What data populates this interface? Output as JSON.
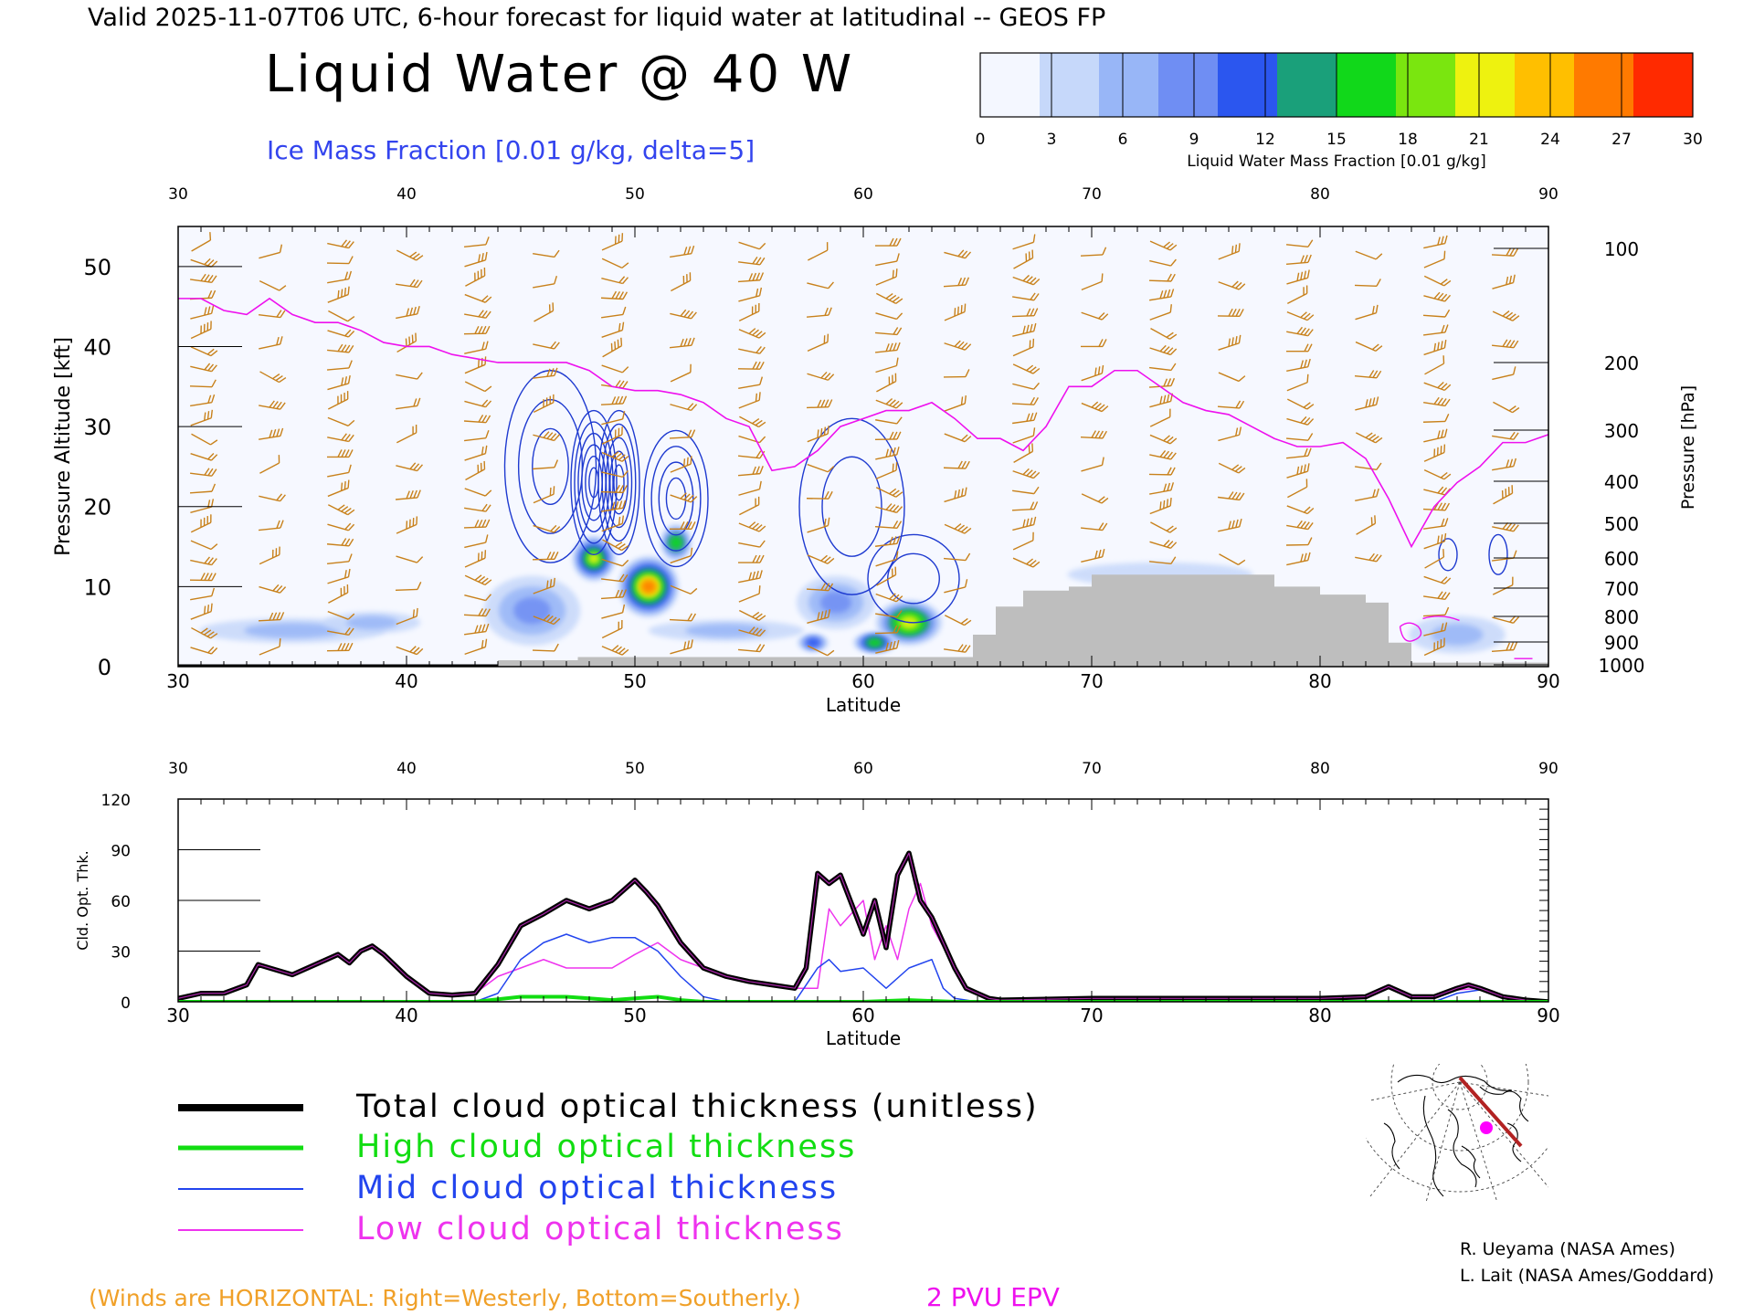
{
  "header": {
    "valid_line": "Valid 2025-11-07T06 UTC, 6-hour forecast for liquid water at latitudinal -- GEOS FP",
    "big_title": "Liquid Water @ 40 W",
    "ice_label": "Ice Mass Fraction [0.01 g/kg, delta=5]"
  },
  "colorbar": {
    "ticks": [
      "0",
      "3",
      "6",
      "9",
      "12",
      "15",
      "18",
      "21",
      "24",
      "27",
      "30"
    ],
    "label": "Liquid Water Mass Fraction [0.01 g/kg]",
    "colors": [
      "#f4f7ff",
      "#c6d8fa",
      "#98b6f7",
      "#6f8ef3",
      "#2b56ef",
      "#1aa07a",
      "#11d81a",
      "#7ae60f",
      "#eef20f",
      "#ffbf00",
      "#ff7a00",
      "#ff2a00"
    ]
  },
  "colors": {
    "wind_barb": "#c8811b",
    "epv": "#ee11ee",
    "ice_contour": "#1e3ad0",
    "terrain": "#bebebe",
    "total": "#000000",
    "high": "#12dd12",
    "mid": "#2244ee",
    "low": "#ee33ee"
  },
  "chart_data": [
    {
      "type": "heatmap",
      "name": "liquid_water_cross_section",
      "x_top_ticks": [
        "30",
        "40",
        "50",
        "60",
        "70",
        "80",
        "90"
      ],
      "x_bottom_ticks": [
        "30",
        "40",
        "50",
        "60",
        "70",
        "80",
        "90"
      ],
      "xlabel": "Latitude",
      "ylabel_left": "Pressure Altitude [kft]",
      "left_ticks": [
        "0",
        "10",
        "20",
        "30",
        "40",
        "50"
      ],
      "ylabel_right": "Pressure [hPa]",
      "right_ticks": [
        "100",
        "200",
        "300",
        "400",
        "500",
        "600",
        "700",
        "800",
        "900",
        "1000"
      ],
      "xlim": [
        30,
        90
      ],
      "ylim": [
        0,
        55
      ],
      "liquid_water_blobs": [
        {
          "lat": 48.2,
          "alt": 13.5,
          "value": 20,
          "w": 0.6,
          "h": 2.5
        },
        {
          "lat": 50.6,
          "alt": 10.0,
          "value": 26,
          "w": 0.9,
          "h": 3.5
        },
        {
          "lat": 51.8,
          "alt": 15.5,
          "value": 16,
          "w": 0.4,
          "h": 2.0
        },
        {
          "lat": 62.0,
          "alt": 5.5,
          "value": 22,
          "w": 1.0,
          "h": 2.5
        },
        {
          "lat": 60.5,
          "alt": 3.0,
          "value": 17,
          "w": 0.6,
          "h": 1.0
        },
        {
          "lat": 57.8,
          "alt": 3.0,
          "value": 12,
          "w": 0.4,
          "h": 0.8
        },
        {
          "lat": 45.5,
          "alt": 7.0,
          "value": 8,
          "w": 1.5,
          "h": 4.0
        },
        {
          "lat": 58.8,
          "alt": 8.0,
          "value": 8,
          "w": 1.2,
          "h": 3.0
        },
        {
          "lat": 35.0,
          "alt": 4.5,
          "value": 7,
          "w": 3.0,
          "h": 1.2
        },
        {
          "lat": 38.5,
          "alt": 5.5,
          "value": 6,
          "w": 1.5,
          "h": 1.0
        },
        {
          "lat": 54.0,
          "alt": 4.5,
          "value": 5,
          "w": 2.5,
          "h": 1.0
        },
        {
          "lat": 86.0,
          "alt": 4.0,
          "value": 5,
          "w": 1.5,
          "h": 2.0
        },
        {
          "lat": 73.0,
          "alt": 11.5,
          "value": 4,
          "w": 3.0,
          "h": 1.2
        }
      ],
      "ice_contours": [
        {
          "lat": 46.3,
          "alt": 25.0,
          "rx": 2.0,
          "ry": 12.0,
          "levels": 3
        },
        {
          "lat": 48.2,
          "alt": 23.0,
          "rx": 1.0,
          "ry": 9.0,
          "levels": 6
        },
        {
          "lat": 49.3,
          "alt": 23.0,
          "rx": 0.9,
          "ry": 9.0,
          "levels": 5
        },
        {
          "lat": 51.8,
          "alt": 21.0,
          "rx": 1.4,
          "ry": 8.5,
          "levels": 4
        },
        {
          "lat": 59.5,
          "alt": 20.0,
          "rx": 2.3,
          "ry": 11.0,
          "levels": 2
        },
        {
          "lat": 62.2,
          "alt": 11.0,
          "rx": 2.0,
          "ry": 5.5,
          "levels": 2
        },
        {
          "lat": 85.6,
          "alt": 14.0,
          "rx": 0.4,
          "ry": 2.0,
          "levels": 1
        },
        {
          "lat": 87.8,
          "alt": 14.0,
          "rx": 0.4,
          "ry": 2.5,
          "levels": 1
        }
      ],
      "epv_2pvu_line": {
        "lat": [
          30,
          31,
          32,
          33,
          34,
          35,
          36,
          37,
          38,
          39,
          40,
          41,
          42,
          43,
          44,
          45,
          46,
          47,
          48,
          49,
          50,
          51,
          52,
          53,
          54,
          55,
          56,
          57,
          58,
          59,
          60,
          61,
          62,
          63,
          64,
          65,
          66,
          67,
          68,
          69,
          70,
          71,
          72,
          73,
          74,
          75,
          76,
          77,
          78,
          79,
          80,
          81,
          82,
          83,
          84,
          85,
          86,
          87,
          88,
          89,
          90
        ],
        "alt_kft": [
          46,
          46,
          44.5,
          44,
          46,
          44,
          43,
          43,
          42,
          40.5,
          40,
          40,
          39,
          38.5,
          38,
          38,
          38,
          38,
          37,
          35,
          34.5,
          34.5,
          34,
          33,
          31,
          30,
          24.5,
          25,
          27,
          30,
          31,
          32,
          32,
          33,
          31,
          28.5,
          28.5,
          27,
          30,
          35,
          35,
          37,
          37,
          35,
          33,
          32,
          31.5,
          30,
          28.5,
          27.5,
          27.5,
          28,
          26,
          21,
          15,
          20,
          23,
          25,
          28,
          28,
          29
        ]
      },
      "terrain": {
        "lat": [
          30,
          40,
          44,
          47.5,
          56,
          60,
          64,
          64.8,
          65.8,
          67,
          69,
          70,
          76,
          78,
          80,
          82,
          83,
          84,
          90
        ],
        "alt_kft": [
          0,
          0,
          0.8,
          1.2,
          1.2,
          1.2,
          1.2,
          4,
          7.5,
          9.5,
          10,
          11.5,
          11.5,
          10,
          9,
          8,
          3,
          0.5,
          0
        ]
      },
      "winds_note": "(Winds are HORIZONTAL: Right=Westerly, Bottom=Southerly.)",
      "epv_label": "2 PVU EPV"
    },
    {
      "type": "line",
      "name": "cloud_optical_thickness",
      "ylabel": "Cld. Opt. Thk.",
      "xlabel": "Latitude",
      "y_ticks": [
        "0",
        "30",
        "60",
        "90",
        "120"
      ],
      "x_top_ticks": [
        "30",
        "40",
        "50",
        "60",
        "70",
        "80",
        "90"
      ],
      "x_bottom_ticks": [
        "30",
        "40",
        "50",
        "60",
        "70",
        "80",
        "90"
      ],
      "xlim": [
        30,
        90
      ],
      "ylim": [
        0,
        120
      ],
      "series": [
        {
          "name": "Total cloud optical thickness (unitless)",
          "key": "total",
          "x": [
            30,
            31,
            32,
            33,
            33.5,
            34,
            35,
            36,
            37,
            37.5,
            38,
            38.5,
            39,
            40,
            41,
            42,
            43,
            44,
            45,
            46,
            47,
            48,
            49,
            50,
            50.5,
            51,
            52,
            53,
            54,
            55,
            56,
            57,
            57.5,
            58,
            58.5,
            59,
            60,
            60.5,
            61,
            61.5,
            62,
            62.5,
            63,
            64,
            64.5,
            65,
            65.5,
            66,
            70,
            75,
            80,
            82,
            83,
            84,
            85,
            86,
            86.5,
            87,
            88,
            89,
            90
          ],
          "y": [
            2,
            5,
            5,
            10,
            22,
            20,
            16,
            22,
            28,
            23,
            30,
            33,
            28,
            15,
            5,
            4,
            5,
            22,
            45,
            52,
            60,
            55,
            60,
            72,
            65,
            57,
            35,
            20,
            15,
            12,
            10,
            8,
            20,
            76,
            70,
            75,
            40,
            60,
            32,
            75,
            88,
            60,
            50,
            20,
            8,
            5,
            2,
            1,
            2,
            2,
            2,
            3,
            9,
            3,
            3,
            8,
            10,
            8,
            3,
            1,
            0
          ]
        },
        {
          "name": "High cloud optical thickness",
          "key": "high",
          "x": [
            30,
            40,
            43,
            45,
            47,
            48,
            49,
            50,
            51,
            52,
            53,
            55,
            58,
            60,
            62,
            64,
            65,
            66,
            90
          ],
          "y": [
            0,
            0,
            0,
            3,
            3,
            2,
            1,
            2,
            3,
            1,
            0,
            0,
            0,
            0,
            1,
            0,
            0,
            0,
            0
          ]
        },
        {
          "name": "Mid cloud optical thickness",
          "key": "mid",
          "x": [
            30,
            43,
            44,
            45,
            46,
            47,
            48,
            49,
            50,
            51,
            52,
            53,
            54,
            57,
            58,
            58.5,
            59,
            60,
            61,
            62,
            63,
            63.5,
            64,
            65,
            85,
            86,
            87,
            88,
            90
          ],
          "y": [
            0,
            0,
            5,
            25,
            35,
            40,
            35,
            38,
            38,
            30,
            15,
            3,
            0,
            0,
            20,
            25,
            18,
            20,
            8,
            20,
            25,
            8,
            2,
            0,
            0,
            5,
            7,
            3,
            0
          ]
        },
        {
          "name": "Low cloud optical thickness",
          "key": "low",
          "x": [
            30,
            31,
            32,
            33,
            33.5,
            34,
            35,
            36,
            37,
            37.5,
            38,
            38.5,
            39,
            40,
            41,
            42,
            43,
            44,
            45,
            46,
            47,
            48,
            49,
            50,
            51,
            52,
            53,
            54,
            55,
            56,
            57,
            58,
            58.5,
            59,
            60,
            60.5,
            61,
            61.5,
            62,
            62.5,
            63,
            64,
            64.5,
            65,
            66,
            70,
            80,
            82,
            83,
            84,
            85,
            86,
            87,
            88,
            90
          ],
          "y": [
            2,
            5,
            5,
            10,
            22,
            20,
            16,
            22,
            28,
            23,
            30,
            33,
            28,
            15,
            5,
            4,
            5,
            15,
            20,
            25,
            20,
            20,
            20,
            28,
            35,
            25,
            20,
            15,
            12,
            10,
            8,
            8,
            55,
            45,
            60,
            25,
            45,
            25,
            55,
            70,
            45,
            20,
            8,
            5,
            1,
            2,
            2,
            3,
            8,
            3,
            3,
            7,
            8,
            3,
            0
          ]
        }
      ]
    }
  ],
  "legend": [
    {
      "key": "total",
      "label": "Total cloud optical thickness (unitless)"
    },
    {
      "key": "high",
      "label": "High cloud optical thickness"
    },
    {
      "key": "mid",
      "label": "Mid cloud optical thickness"
    },
    {
      "key": "low",
      "label": "Low cloud optical thickness"
    }
  ],
  "credits": {
    "line1": "R. Ueyama (NASA Ames)",
    "line2": "L. Lait (NASA Ames/Goddard)"
  },
  "inset_map": {
    "marker_color": "#ff00ff",
    "track_color": "#b22222"
  }
}
